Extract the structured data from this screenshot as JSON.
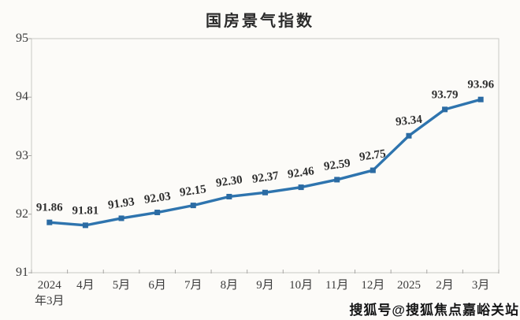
{
  "chart_data": {
    "type": "line",
    "title": "国房景气指数",
    "categories": [
      "2024\n年3月",
      "4月",
      "5月",
      "6月",
      "7月",
      "8月",
      "9月",
      "10月",
      "11月",
      "12月",
      "2025",
      "2月",
      "3月"
    ],
    "values": [
      91.86,
      91.81,
      91.93,
      92.03,
      92.15,
      92.3,
      92.37,
      92.46,
      92.59,
      92.75,
      93.34,
      93.79,
      93.96
    ],
    "point_labels": [
      "91.86",
      "91.81",
      "91.93",
      "92.03",
      "92.15",
      "92.30",
      "92.37",
      "92.46",
      "92.59",
      "92.75",
      "93.34",
      "93.79",
      "93.96"
    ],
    "ylim": [
      91,
      95
    ],
    "yticks": [
      91,
      92,
      93,
      94,
      95
    ],
    "grid": false,
    "legend_position": "none",
    "line_color": "#2E74AE",
    "marker_color": "#2B6BA3",
    "axis_border_color": "#c9c8c5",
    "tick_color": "#a8a7a4",
    "label_color": "#2e2e2e"
  },
  "watermark": {
    "text": "搜狐号@搜狐焦点嘉峪关站"
  }
}
